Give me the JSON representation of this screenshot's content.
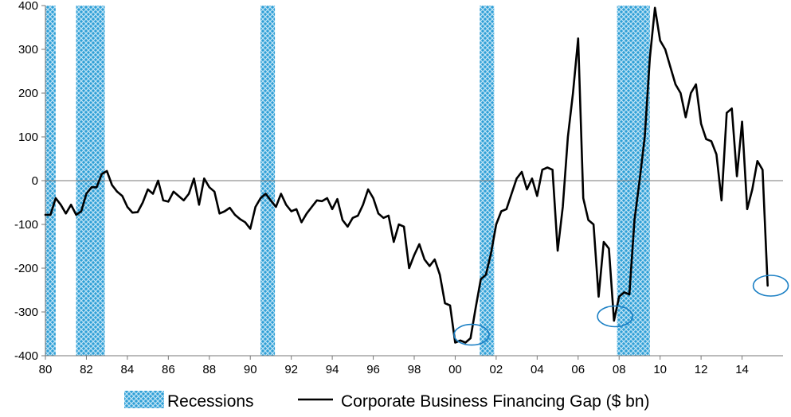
{
  "chart_data": {
    "type": "line",
    "title": "",
    "xlabel": "",
    "ylabel": "",
    "xlim": [
      1980,
      2016
    ],
    "ylim": [
      -400,
      400
    ],
    "x_ticks": [
      1980,
      1982,
      1984,
      1986,
      1988,
      1990,
      1992,
      1994,
      1996,
      1998,
      2000,
      2002,
      2004,
      2006,
      2008,
      2010,
      2012,
      2014
    ],
    "x_tick_labels": [
      "80",
      "82",
      "84",
      "86",
      "88",
      "90",
      "92",
      "94",
      "96",
      "98",
      "00",
      "02",
      "04",
      "06",
      "08",
      "10",
      "12",
      "14"
    ],
    "y_ticks": [
      400,
      300,
      200,
      100,
      0,
      -100,
      -200,
      -300,
      -400
    ],
    "y_tick_labels": [
      "400",
      "300",
      "200",
      "100",
      "0",
      "-100",
      "-200",
      "-300",
      "-400"
    ],
    "grid": false,
    "zero_line": true,
    "legend": {
      "placement": "bottom",
      "entries": [
        "Recessions",
        "Corporate Business Financing Gap ($ bn)"
      ]
    },
    "recessions": [
      {
        "start": 1980.0,
        "end": 1980.5
      },
      {
        "start": 1981.5,
        "end": 1982.9
      },
      {
        "start": 1990.5,
        "end": 1991.2
      },
      {
        "start": 2001.2,
        "end": 2001.9
      },
      {
        "start": 2007.9,
        "end": 2009.5
      }
    ],
    "series": [
      {
        "name": "Corporate Business Financing Gap ($ bn)",
        "color": "#000000",
        "x": [
          1980.0,
          1980.25,
          1980.5,
          1980.75,
          1981.0,
          1981.25,
          1981.5,
          1981.75,
          1982.0,
          1982.25,
          1982.5,
          1982.75,
          1983.0,
          1983.25,
          1983.5,
          1983.75,
          1984.0,
          1984.25,
          1984.5,
          1984.75,
          1985.0,
          1985.25,
          1985.5,
          1985.75,
          1986.0,
          1986.25,
          1986.5,
          1986.75,
          1987.0,
          1987.25,
          1987.5,
          1987.75,
          1988.0,
          1988.25,
          1988.5,
          1988.75,
          1989.0,
          1989.25,
          1989.5,
          1989.75,
          1990.0,
          1990.25,
          1990.5,
          1990.75,
          1991.0,
          1991.25,
          1991.5,
          1991.75,
          1992.0,
          1992.25,
          1992.5,
          1992.75,
          1993.0,
          1993.25,
          1993.5,
          1993.75,
          1994.0,
          1994.25,
          1994.5,
          1994.75,
          1995.0,
          1995.25,
          1995.5,
          1995.75,
          1996.0,
          1996.25,
          1996.5,
          1996.75,
          1997.0,
          1997.25,
          1997.5,
          1997.75,
          1998.0,
          1998.25,
          1998.5,
          1998.75,
          1999.0,
          1999.25,
          1999.5,
          1999.75,
          2000.0,
          2000.25,
          2000.5,
          2000.75,
          2001.0,
          2001.25,
          2001.5,
          2001.75,
          2002.0,
          2002.25,
          2002.5,
          2002.75,
          2003.0,
          2003.25,
          2003.5,
          2003.75,
          2004.0,
          2004.25,
          2004.5,
          2004.75,
          2005.0,
          2005.25,
          2005.5,
          2005.75,
          2006.0,
          2006.25,
          2006.5,
          2006.75,
          2007.0,
          2007.25,
          2007.5,
          2007.75,
          2008.0,
          2008.25,
          2008.5,
          2008.75,
          2009.0,
          2009.25,
          2009.5,
          2009.75,
          2010.0,
          2010.25,
          2010.5,
          2010.75,
          2011.0,
          2011.25,
          2011.5,
          2011.75,
          2012.0,
          2012.25,
          2012.5,
          2012.75,
          2013.0,
          2013.25,
          2013.5,
          2013.75,
          2014.0,
          2014.25,
          2014.5,
          2014.75,
          2015.0,
          2015.25
        ],
        "y": [
          -78,
          -78,
          -40,
          -55,
          -75,
          -55,
          -78,
          -70,
          -30,
          -15,
          -15,
          15,
          22,
          -10,
          -25,
          -35,
          -60,
          -73,
          -72,
          -50,
          -20,
          -30,
          0,
          -45,
          -48,
          -25,
          -35,
          -45,
          -30,
          5,
          -55,
          5,
          -15,
          -25,
          -75,
          -70,
          -62,
          -78,
          -88,
          -95,
          -110,
          -60,
          -40,
          -30,
          -45,
          -60,
          -30,
          -55,
          -70,
          -65,
          -95,
          -75,
          -60,
          -45,
          -47,
          -40,
          -65,
          -42,
          -90,
          -105,
          -85,
          -80,
          -55,
          -20,
          -40,
          -75,
          -85,
          -80,
          -140,
          -100,
          -105,
          -200,
          -170,
          -145,
          -180,
          -195,
          -180,
          -215,
          -280,
          -285,
          -370,
          -365,
          -370,
          -360,
          -290,
          -225,
          -215,
          -165,
          -100,
          -70,
          -65,
          -30,
          5,
          20,
          -20,
          5,
          -35,
          25,
          30,
          25,
          -160,
          -60,
          100,
          200,
          325,
          -40,
          -90,
          -100,
          -265,
          -140,
          -155,
          -320,
          -265,
          -255,
          -260,
          -90,
          0,
          100,
          280,
          395,
          320,
          300,
          260,
          220,
          200,
          145,
          200,
          220,
          130,
          95,
          90,
          60,
          -45,
          155,
          165,
          10,
          135,
          -65,
          -20,
          45,
          25,
          -240
        ]
      }
    ],
    "annotations": [
      {
        "shape": "ellipse",
        "x": 2000.8,
        "y": -352
      },
      {
        "shape": "ellipse",
        "x": 2007.8,
        "y": -310
      },
      {
        "shape": "ellipse",
        "x": 2015.4,
        "y": -240
      }
    ]
  }
}
